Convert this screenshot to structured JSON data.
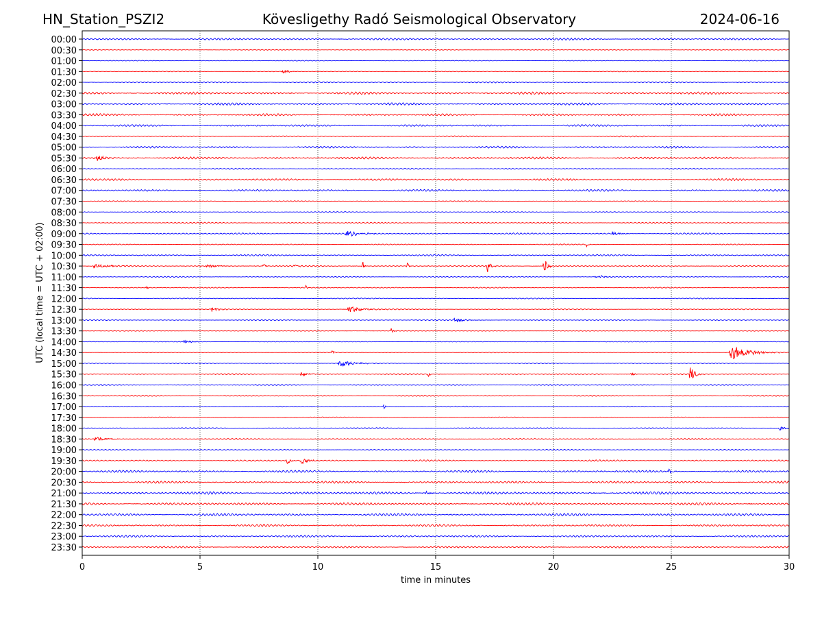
{
  "chart_data": {
    "type": "line",
    "subtype": "helicorder",
    "title_left": "HN_Station_PSZI2",
    "title": "Kövesligethy Radó Seismological Observatory",
    "title_right": "2024-06-16",
    "xlabel": "time in minutes",
    "ylabel": "UTC (local time = UTC + 02:00)",
    "xlim": [
      0,
      30
    ],
    "xticks": [
      "0",
      "5",
      "10",
      "15",
      "20",
      "25",
      "30"
    ],
    "x_grid": "dotted vertical lines at each 5 minutes",
    "colors": [
      "#0000ff",
      "#ff0000"
    ],
    "rows": [
      "00:00",
      "00:30",
      "01:00",
      "01:30",
      "02:00",
      "02:30",
      "03:00",
      "03:30",
      "04:00",
      "04:30",
      "05:00",
      "05:30",
      "06:00",
      "06:30",
      "07:00",
      "07:30",
      "08:00",
      "08:30",
      "09:00",
      "09:30",
      "10:00",
      "10:30",
      "11:00",
      "11:30",
      "12:00",
      "12:30",
      "13:00",
      "13:30",
      "14:00",
      "14:30",
      "15:00",
      "15:30",
      "16:00",
      "16:30",
      "17:00",
      "17:30",
      "18:00",
      "18:30",
      "19:00",
      "19:30",
      "20:00",
      "20:30",
      "21:00",
      "21:30",
      "22:00",
      "22:30",
      "23:00",
      "23:30"
    ],
    "noise_level": [
      0.8,
      0.3,
      0.3,
      0.3,
      0.5,
      1.0,
      1.0,
      0.9,
      0.8,
      0.5,
      0.8,
      0.9,
      0.5,
      0.8,
      0.8,
      0.4,
      0.4,
      0.5,
      0.6,
      0.4,
      0.6,
      0.5,
      0.4,
      0.4,
      0.4,
      0.4,
      0.4,
      0.3,
      0.3,
      0.3,
      0.4,
      0.5,
      0.5,
      0.5,
      0.4,
      0.4,
      0.5,
      0.5,
      0.4,
      0.6,
      0.9,
      0.9,
      1.1,
      1.0,
      1.0,
      0.8,
      0.8,
      0.7
    ],
    "events": [
      {
        "row": "01:30",
        "minute": 8.5,
        "amplitude": 1.5,
        "duration": 0.4
      },
      {
        "row": "05:30",
        "minute": 0.6,
        "amplitude": 2,
        "duration": 0.5
      },
      {
        "row": "09:00",
        "minute": 11.2,
        "amplitude": 2,
        "duration": 1.0
      },
      {
        "row": "09:00",
        "minute": 22.5,
        "amplitude": 1.5,
        "duration": 0.5
      },
      {
        "row": "09:30",
        "minute": 21.4,
        "amplitude": 2,
        "duration": 0.1
      },
      {
        "row": "10:30",
        "minute": 0.5,
        "amplitude": 1.5,
        "duration": 1.0
      },
      {
        "row": "10:30",
        "minute": 5.3,
        "amplitude": 2,
        "duration": 0.5
      },
      {
        "row": "10:30",
        "minute": 7.7,
        "amplitude": 2,
        "duration": 0.1
      },
      {
        "row": "10:30",
        "minute": 9.0,
        "amplitude": 1.5,
        "duration": 0.2
      },
      {
        "row": "10:30",
        "minute": 11.9,
        "amplitude": 4,
        "duration": 0.1
      },
      {
        "row": "10:30",
        "minute": 13.8,
        "amplitude": 2,
        "duration": 0.1
      },
      {
        "row": "10:30",
        "minute": 17.2,
        "amplitude": 4,
        "duration": 0.2
      },
      {
        "row": "10:30",
        "minute": 19.6,
        "amplitude": 6,
        "duration": 0.2
      },
      {
        "row": "11:00",
        "minute": 21.8,
        "amplitude": 1.5,
        "duration": 0.5
      },
      {
        "row": "11:30",
        "minute": 2.7,
        "amplitude": 1.5,
        "duration": 0.1
      },
      {
        "row": "11:30",
        "minute": 9.5,
        "amplitude": 1.5,
        "duration": 0.1
      },
      {
        "row": "12:30",
        "minute": 5.5,
        "amplitude": 1.5,
        "duration": 0.4
      },
      {
        "row": "12:30",
        "minute": 11.3,
        "amplitude": 2.5,
        "duration": 0.8
      },
      {
        "row": "13:00",
        "minute": 15.8,
        "amplitude": 1.5,
        "duration": 0.8
      },
      {
        "row": "13:30",
        "minute": 13.1,
        "amplitude": 2,
        "duration": 0.2
      },
      {
        "row": "14:00",
        "minute": 4.3,
        "amplitude": 1.3,
        "duration": 0.5
      },
      {
        "row": "14:30",
        "minute": 10.6,
        "amplitude": 1.5,
        "duration": 0.2
      },
      {
        "row": "14:30",
        "minute": 27.5,
        "amplitude": 5,
        "duration": 1.2
      },
      {
        "row": "15:00",
        "minute": 10.9,
        "amplitude": 2.5,
        "duration": 0.8
      },
      {
        "row": "15:30",
        "minute": 9.3,
        "amplitude": 1.5,
        "duration": 0.4
      },
      {
        "row": "15:30",
        "minute": 14.7,
        "amplitude": 2,
        "duration": 0.1
      },
      {
        "row": "15:30",
        "minute": 23.3,
        "amplitude": 1.5,
        "duration": 0.2
      },
      {
        "row": "15:30",
        "minute": 25.8,
        "amplitude": 5,
        "duration": 0.3
      },
      {
        "row": "17:00",
        "minute": 12.8,
        "amplitude": 2,
        "duration": 0.1
      },
      {
        "row": "18:00",
        "minute": 29.6,
        "amplitude": 1.5,
        "duration": 0.4
      },
      {
        "row": "18:30",
        "minute": 0.5,
        "amplitude": 1.5,
        "duration": 0.8
      },
      {
        "row": "19:30",
        "minute": 8.7,
        "amplitude": 2.5,
        "duration": 0.2
      },
      {
        "row": "19:30",
        "minute": 9.3,
        "amplitude": 3,
        "duration": 0.4
      },
      {
        "row": "20:00",
        "minute": 24.9,
        "amplitude": 2,
        "duration": 0.2
      },
      {
        "row": "21:00",
        "minute": 14.6,
        "amplitude": 2,
        "duration": 0.2
      }
    ]
  }
}
